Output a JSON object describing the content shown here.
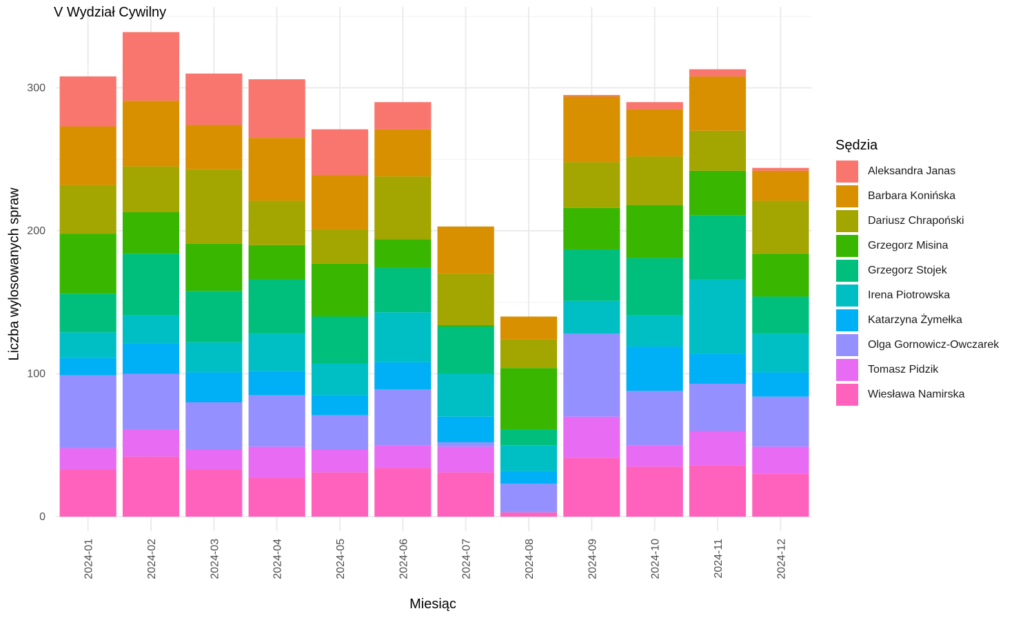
{
  "chart_data": {
    "type": "bar",
    "stacked": true,
    "title": "V Wydział Cywilny",
    "xlabel": "Miesiąc",
    "ylabel": "Liczba wylosowanych spraw",
    "legend_title": "Sędzia",
    "legend_position": "right",
    "grid": true,
    "ylim": [
      0,
      350
    ],
    "yticks": [
      0,
      100,
      200,
      300
    ],
    "categories": [
      "2024-01",
      "2024-02",
      "2024-03",
      "2024-04",
      "2024-05",
      "2024-06",
      "2024-07",
      "2024-08",
      "2024-09",
      "2024-10",
      "2024-11",
      "2024-12"
    ],
    "series": [
      {
        "name": "Aleksandra Janas",
        "color": "#F8766D",
        "values": [
          35,
          48,
          36,
          41,
          32,
          19,
          0,
          0,
          1,
          5,
          5,
          2
        ]
      },
      {
        "name": "Barbara Konińska",
        "color": "#D89000",
        "values": [
          41,
          46,
          31,
          44,
          38,
          33,
          33,
          16,
          46,
          33,
          38,
          21
        ]
      },
      {
        "name": "Dariusz Chrapoński",
        "color": "#A3A500",
        "values": [
          34,
          32,
          52,
          31,
          24,
          44,
          36,
          20,
          32,
          34,
          28,
          37
        ]
      },
      {
        "name": "Grzegorz Misina",
        "color": "#39B600",
        "values": [
          42,
          29,
          33,
          24,
          37,
          20,
          1,
          43,
          29,
          37,
          31,
          30
        ]
      },
      {
        "name": "Grzegorz Stojek",
        "color": "#00BF7D",
        "values": [
          27,
          43,
          36,
          38,
          33,
          31,
          33,
          11,
          36,
          40,
          45,
          26
        ]
      },
      {
        "name": "Irena Piotrowska",
        "color": "#00BFC4",
        "values": [
          18,
          20,
          21,
          26,
          22,
          35,
          30,
          18,
          23,
          22,
          52,
          27
        ]
      },
      {
        "name": "Katarzyna Żymełka",
        "color": "#00B0F6",
        "values": [
          12,
          21,
          21,
          17,
          14,
          19,
          18,
          9,
          0,
          31,
          21,
          17
        ]
      },
      {
        "name": "Olga Gornowicz-Owczarek",
        "color": "#9590FF",
        "values": [
          51,
          39,
          33,
          36,
          24,
          39,
          3,
          20,
          58,
          38,
          33,
          35
        ]
      },
      {
        "name": "Tomasz Pidzik",
        "color": "#E76BF3",
        "values": [
          15,
          19,
          14,
          22,
          16,
          16,
          18,
          0,
          29,
          15,
          24,
          19
        ]
      },
      {
        "name": "Wiesława Namirska",
        "color": "#FF62BC",
        "values": [
          33,
          42,
          33,
          27,
          31,
          34,
          31,
          3,
          41,
          35,
          36,
          30
        ]
      }
    ]
  }
}
